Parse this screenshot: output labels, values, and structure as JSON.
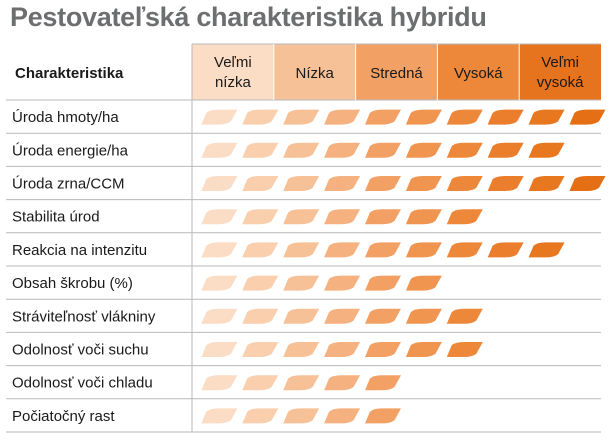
{
  "title": "Pestovateľská charakteristika hybridu",
  "chart_data": {
    "type": "table",
    "row_header": "Charakteristika",
    "levels": [
      {
        "lines": [
          "Veľmi",
          "nízka"
        ],
        "color": "#fbdcc4"
      },
      {
        "lines": [
          "Nízka"
        ],
        "color": "#f7c198"
      },
      {
        "lines": [
          "Stredná"
        ],
        "color": "#f2a064"
      },
      {
        "lines": [
          "Vysoká"
        ],
        "color": "#ed883a"
      },
      {
        "lines": [
          "Veľmi",
          "vysoká"
        ],
        "color": "#e6731e"
      }
    ],
    "max_score": 10,
    "rows": [
      {
        "label": "Úroda hmoty/ha",
        "score": 10
      },
      {
        "label": "Úroda energie/ha",
        "score": 9
      },
      {
        "label": "Úroda zrna/CCM",
        "score": 10
      },
      {
        "label": "Stabilita úrod",
        "score": 7
      },
      {
        "label": "Reakcia na intenzitu",
        "score": 9
      },
      {
        "label": "Obsah škrobu (%)",
        "score": 6
      },
      {
        "label": "Stráviteľnosť vlákniny",
        "score": 7
      },
      {
        "label": "Odolnosť voči suchu",
        "score": 7
      },
      {
        "label": "Odolnosť voči chladu",
        "score": 5
      },
      {
        "label": "Počiatočný rast",
        "score": 5
      }
    ],
    "leaf_colors": [
      "#fbdcc4",
      "#f9cfae",
      "#f7c198",
      "#f5b17f",
      "#f2a064",
      "#f09550",
      "#ed883a",
      "#eb7e2d",
      "#e8781f",
      "#e56f14"
    ],
    "grid_color": "#b8b9bb"
  }
}
